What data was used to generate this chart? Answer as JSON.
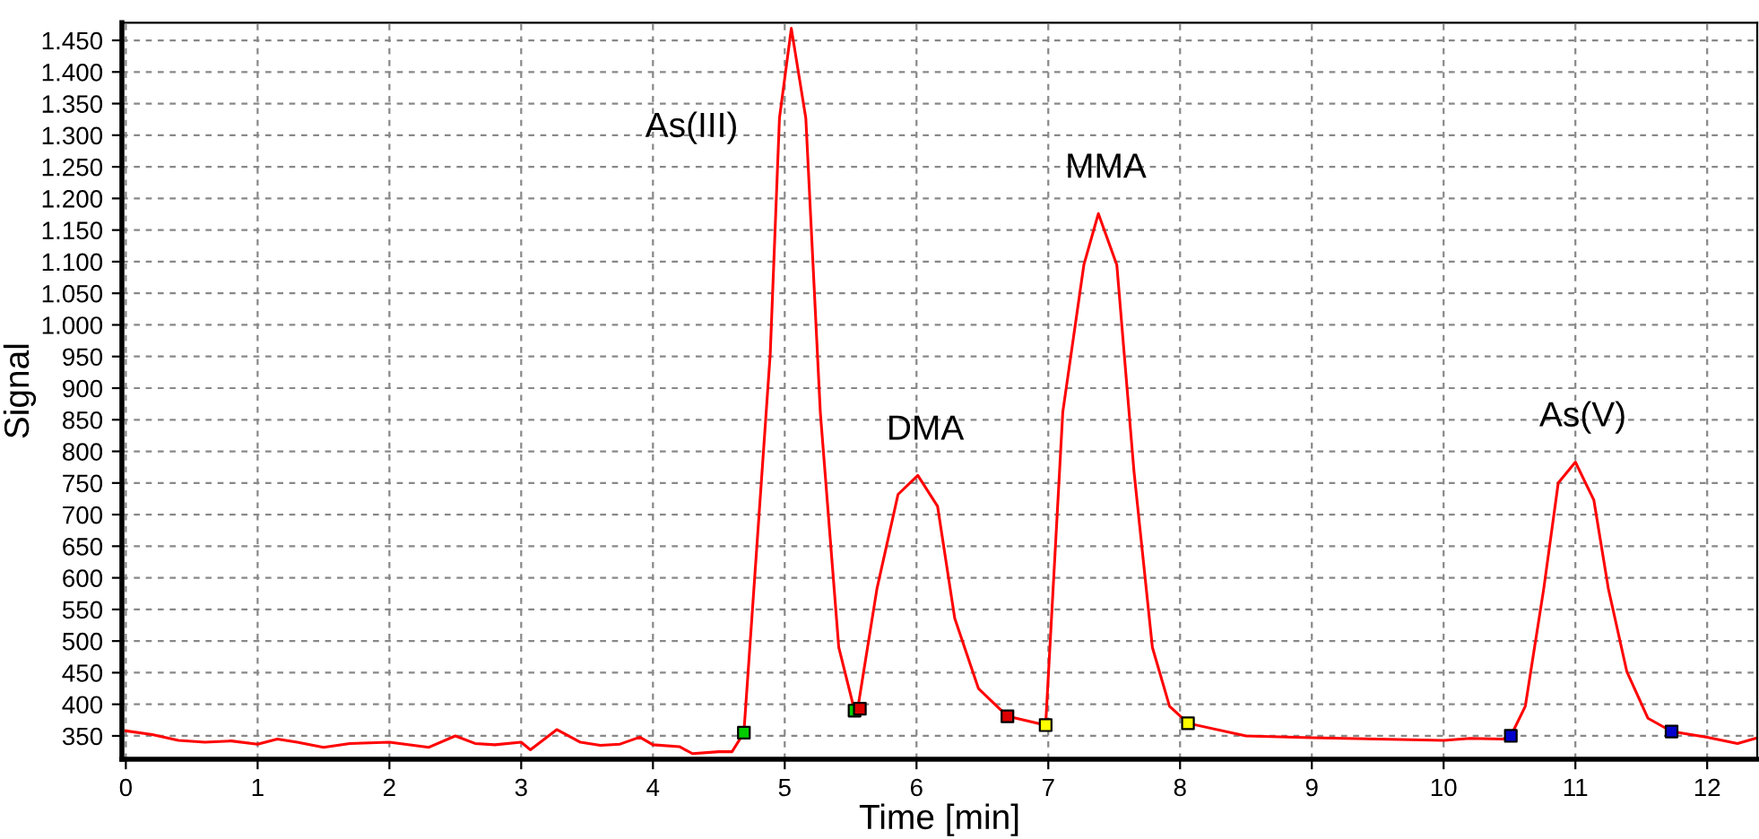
{
  "chart_data": {
    "type": "line",
    "xlabel": "Time [min]",
    "ylabel": "Signal",
    "xlim": [
      -0.03,
      12.38
    ],
    "ylim": [
      313,
      1478
    ],
    "xticks": [
      0,
      1,
      2,
      3,
      4,
      5,
      6,
      7,
      8,
      9,
      10,
      11,
      12
    ],
    "yticks": [
      350,
      400,
      450,
      500,
      550,
      600,
      650,
      700,
      750,
      800,
      850,
      900,
      950,
      {
        "value": 1000,
        "label": "1.000"
      },
      {
        "value": 1050,
        "label": "1.050"
      },
      {
        "value": 1100,
        "label": "1.100"
      },
      {
        "value": 1150,
        "label": "1.150"
      },
      {
        "value": 1200,
        "label": "1.200"
      },
      {
        "value": 1250,
        "label": "1.250"
      },
      {
        "value": 1300,
        "label": "1.300"
      },
      {
        "value": 1350,
        "label": "1.350"
      },
      {
        "value": 1400,
        "label": "1.400"
      },
      {
        "value": 1450,
        "label": "1.450"
      }
    ],
    "grid": true,
    "legend": false,
    "marker": "none",
    "line_style": "solid",
    "series": [
      {
        "color": "#ff0000",
        "x": [
          0,
          0.2,
          0.4,
          0.6,
          0.8,
          1.0,
          1.15,
          1.3,
          1.5,
          1.7,
          2.0,
          2.3,
          2.5,
          2.65,
          2.8,
          3.0,
          3.07,
          3.27,
          3.45,
          3.6,
          3.75,
          3.9,
          4.0,
          4.2,
          4.3,
          4.5,
          4.6,
          4.69,
          4.89,
          4.96,
          5.05,
          5.16,
          5.27,
          5.41,
          5.53,
          5.55,
          5.7,
          5.86,
          6.01,
          6.16,
          6.29,
          6.47,
          6.69,
          6.98,
          7.11,
          7.27,
          7.38,
          7.52,
          7.65,
          7.79,
          7.92,
          8.06,
          8.5,
          9.0,
          9.5,
          10.0,
          10.2,
          10.45,
          10.51,
          10.62,
          10.76,
          10.87,
          11.0,
          11.14,
          11.25,
          11.39,
          11.55,
          11.73,
          12.0,
          12.23,
          12.38
        ],
        "values": [
          358,
          352,
          343,
          340,
          342,
          337,
          345,
          340,
          332,
          338,
          340,
          332,
          350,
          338,
          336,
          340,
          328,
          360,
          340,
          335,
          337,
          348,
          336,
          333,
          322,
          325,
          325,
          355,
          954,
          1327,
          1469,
          1327,
          862,
          490,
          390,
          388,
          583,
          732,
          762,
          713,
          536,
          425,
          381,
          367,
          862,
          1095,
          1176,
          1095,
          769,
          490,
          397,
          370,
          350,
          347,
          345,
          343,
          346,
          345,
          350,
          397,
          583,
          750,
          783,
          723,
          583,
          452,
          378,
          357,
          348,
          338,
          347
        ]
      },
      {
        "type": "scatter",
        "marker": "square",
        "color": "#00cc00",
        "x": [
          4.69,
          5.53
        ],
        "values": [
          355,
          390
        ]
      },
      {
        "type": "scatter",
        "marker": "square",
        "color": "#dd0000",
        "x": [
          5.57,
          6.69
        ],
        "values": [
          393,
          381
        ]
      },
      {
        "type": "scatter",
        "marker": "square",
        "color": "#ffff00",
        "x": [
          6.98,
          8.06
        ],
        "values": [
          367,
          370
        ]
      },
      {
        "type": "scatter",
        "marker": "square",
        "color": "#0000cc",
        "x": [
          10.51,
          11.73
        ],
        "values": [
          350,
          357
        ]
      }
    ],
    "annotations": [
      {
        "text": "As(III)",
        "x": 5.05,
        "y": 1469
      },
      {
        "text": "DMA",
        "x": 6.01,
        "y": 762
      },
      {
        "text": "MMA",
        "x": 7.38,
        "y": 1176
      },
      {
        "text": "As(V)",
        "x": 11.0,
        "y": 783
      }
    ]
  }
}
